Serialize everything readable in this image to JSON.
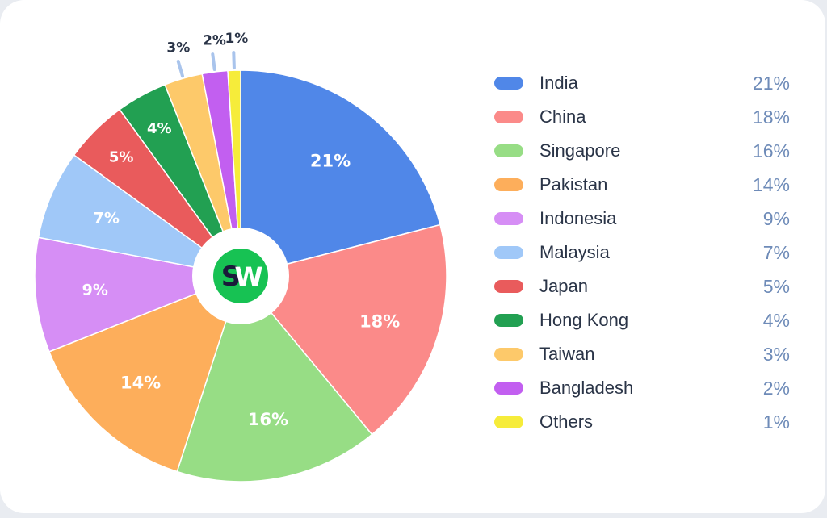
{
  "chart_data": {
    "type": "pie",
    "title": "",
    "legend_position": "right",
    "categories": [
      "India",
      "China",
      "Singapore",
      "Pakistan",
      "Indonesia",
      "Malaysia",
      "Japan",
      "Hong Kong",
      "Taiwan",
      "Bangladesh",
      "Others"
    ],
    "values": [
      21,
      18,
      16,
      14,
      9,
      7,
      5,
      4,
      3,
      2,
      1
    ],
    "value_labels": [
      "21%",
      "18%",
      "16%",
      "14%",
      "9%",
      "7%",
      "5%",
      "4%",
      "3%",
      "2%",
      "1%"
    ],
    "colors": [
      "#5087e8",
      "#fb8a89",
      "#97dd85",
      "#fdae5b",
      "#d68ef5",
      "#a0c8f8",
      "#e95b5c",
      "#22a052",
      "#fdc96a",
      "#c25ff0",
      "#f6ec3a"
    ],
    "center_logo": {
      "letters": [
        "S",
        "W"
      ],
      "colors": [
        "#1a1a3a",
        "#ffffff",
        "#17c253"
      ]
    }
  }
}
